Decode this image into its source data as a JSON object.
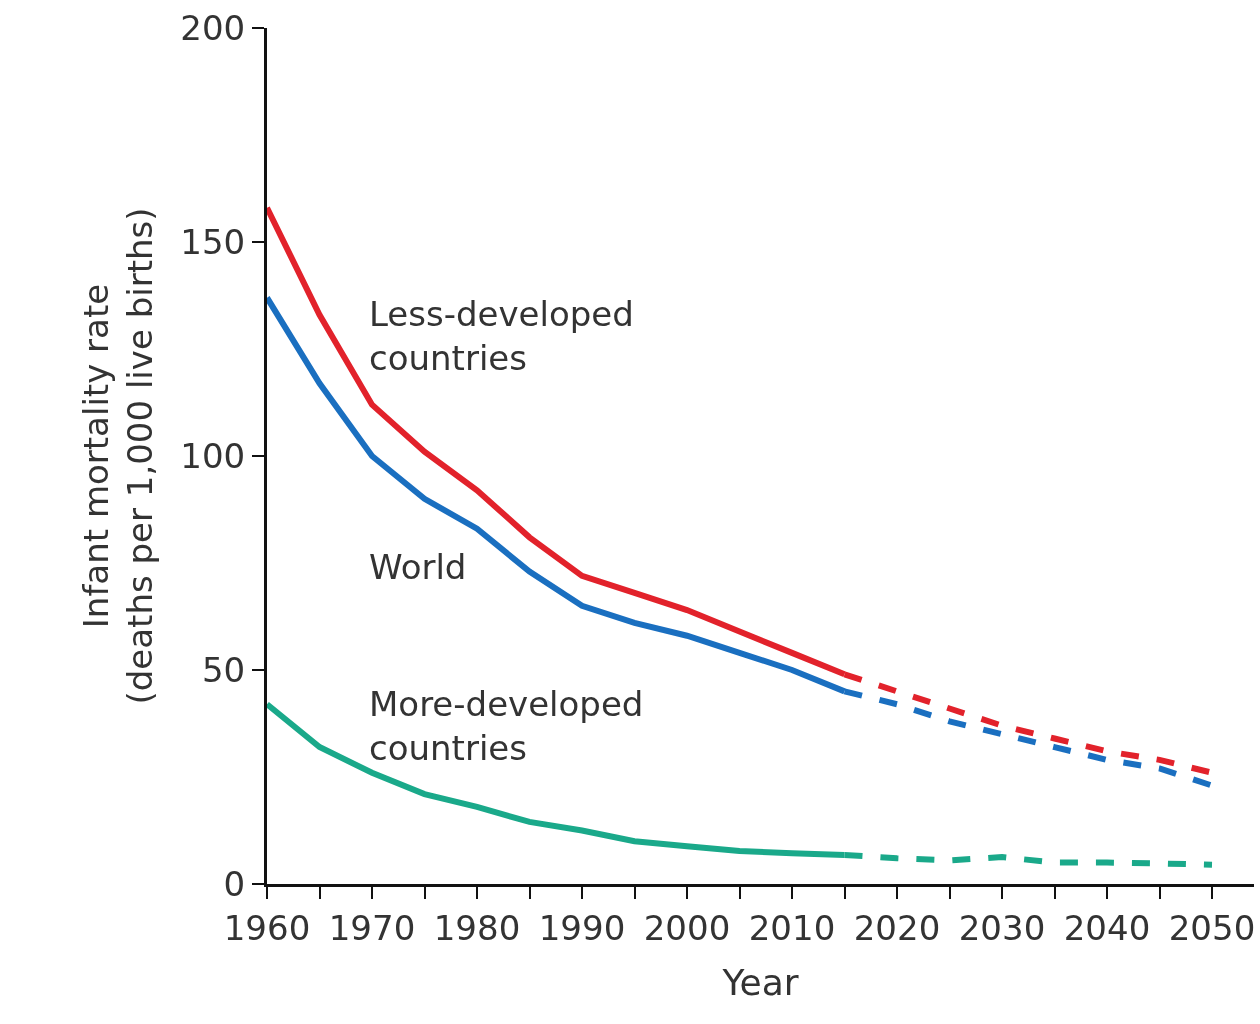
{
  "chart_data": {
    "type": "line",
    "xlabel": "Year",
    "ylabel": "Infant mortality rate\n(deaths per 1,000 live births)",
    "xlim": [
      1960,
      2054
    ],
    "ylim": [
      0,
      200
    ],
    "xticks": [
      1960,
      {
        "value": 1965,
        "label": null
      },
      1970,
      {
        "value": 1975,
        "label": null
      },
      1980,
      {
        "value": 1985,
        "label": null
      },
      1990,
      {
        "value": 1995,
        "label": null
      },
      2000,
      {
        "value": 2005,
        "label": null
      },
      2010,
      {
        "value": 2015,
        "label": null
      },
      2020,
      {
        "value": 2025,
        "label": null
      },
      2030,
      {
        "value": 2035,
        "label": null
      },
      2040,
      {
        "value": 2045,
        "label": null
      },
      2050
    ],
    "yticks": [
      0,
      50,
      100,
      150,
      200
    ],
    "grid": false,
    "legend": false,
    "marker": "none",
    "series": [
      {
        "name": "Less-developed countries",
        "color": "#e2222b",
        "line_style": "solid",
        "x": [
          1960,
          1965,
          1970,
          1975,
          1980,
          1985,
          1990,
          1995,
          2000,
          2005,
          2010,
          2015
        ],
        "values": [
          158,
          133,
          112,
          101,
          92,
          81,
          72,
          68,
          64,
          59,
          54,
          49
        ]
      },
      {
        "color": "#e2222b",
        "line_style": "dashed",
        "x": [
          2015,
          2020,
          2025,
          2030,
          2035,
          2040,
          2045,
          2050
        ],
        "values": [
          49,
          45,
          41,
          37,
          34,
          31,
          29,
          26
        ]
      },
      {
        "name": "World",
        "color": "#1a6fc0",
        "line_style": "solid",
        "x": [
          1960,
          1965,
          1970,
          1975,
          1980,
          1985,
          1990,
          1995,
          2000,
          2005,
          2010,
          2015
        ],
        "values": [
          137,
          117,
          100,
          90,
          83,
          73,
          65,
          61,
          58,
          54,
          50,
          45
        ]
      },
      {
        "color": "#1a6fc0",
        "line_style": "dashed",
        "x": [
          2015,
          2020,
          2025,
          2030,
          2035,
          2040,
          2045,
          2050
        ],
        "values": [
          45,
          42,
          38,
          35,
          32,
          29,
          27,
          23
        ]
      },
      {
        "name": "More-developed countries",
        "color": "#1aa98a",
        "line_style": "solid",
        "x": [
          1960,
          1965,
          1970,
          1975,
          1980,
          1985,
          1990,
          1995,
          2000,
          2005,
          2010,
          2015
        ],
        "values": [
          42,
          32,
          26,
          21,
          18,
          14.5,
          12.5,
          10,
          8.8,
          7.7,
          7.2,
          6.8
        ]
      },
      {
        "color": "#1aa98a",
        "line_style": "dashed",
        "x": [
          2015,
          2020,
          2025,
          2030,
          2035,
          2040,
          2045,
          2050
        ],
        "values": [
          6.8,
          6,
          5.5,
          6.3,
          5,
          5,
          4.8,
          4.5
        ]
      }
    ]
  }
}
